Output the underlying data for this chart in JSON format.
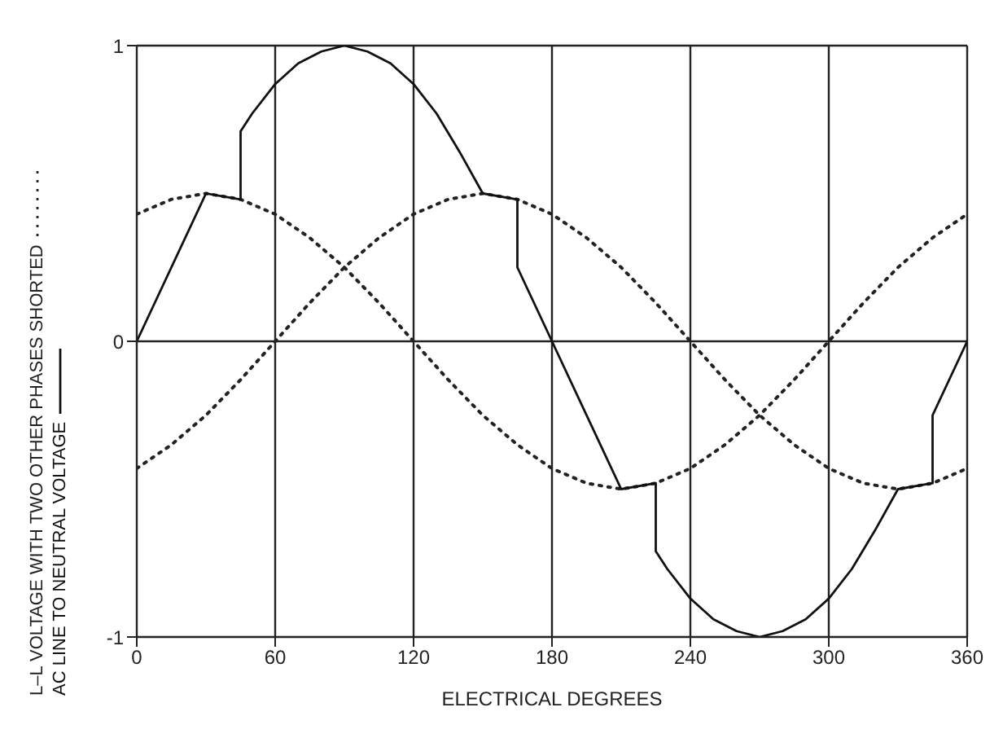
{
  "chart_data": {
    "type": "line",
    "xlabel": "ELECTRICAL DEGREES",
    "xlim": [
      0,
      360
    ],
    "xticks": [
      0,
      60,
      120,
      180,
      240,
      300,
      360
    ],
    "ylim": [
      -1,
      1
    ],
    "yticks": [
      -1,
      0,
      1
    ],
    "grid": true,
    "legend": "left",
    "marker": "none",
    "series": [
      {
        "name": "L–L VOLTAGE WITH TWO OTHER PHASES SHORTED",
        "color": "#222222",
        "line_style": "dotted",
        "x": [
          0,
          15,
          30,
          45,
          60,
          75,
          90,
          105,
          120,
          135,
          150,
          165,
          180,
          195,
          210,
          225,
          240,
          255,
          270,
          285,
          300,
          315,
          330,
          345,
          360
        ],
        "values": [
          0.43,
          0.48,
          0.5,
          0.48,
          0.43,
          0.35,
          0.25,
          0.13,
          0,
          -0.13,
          -0.25,
          -0.35,
          -0.43,
          -0.48,
          -0.5,
          -0.48,
          -0.43,
          -0.35,
          -0.25,
          -0.13,
          0,
          0.13,
          0.25,
          0.35,
          0.43
        ]
      },
      {
        "color": "#222222",
        "line_style": "dotted",
        "x": [
          0,
          15,
          30,
          45,
          60,
          75,
          90,
          105,
          120,
          135,
          150,
          165,
          180,
          195,
          210,
          225,
          240,
          255,
          270,
          285,
          300,
          315,
          330,
          345,
          360
        ],
        "values": [
          -0.43,
          -0.35,
          -0.25,
          -0.13,
          0,
          0.13,
          0.25,
          0.35,
          0.43,
          0.48,
          0.5,
          0.48,
          0.43,
          0.35,
          0.25,
          0.13,
          0,
          -0.13,
          -0.25,
          -0.35,
          -0.43,
          -0.48,
          -0.5,
          -0.48,
          -0.43
        ]
      },
      {
        "name": "AC LINE TO NEUTRAL VOLTAGE",
        "color": "#111111",
        "line_style": "solid",
        "x": [
          0,
          30,
          45,
          45,
          50,
          60,
          70,
          80,
          90,
          100,
          110,
          120,
          130,
          140,
          150,
          165,
          165,
          180,
          210,
          225,
          225,
          230,
          240,
          250,
          260,
          270,
          280,
          290,
          300,
          310,
          320,
          330,
          345,
          345,
          360
        ],
        "values": [
          0,
          0.5,
          0.48,
          0.71,
          0.77,
          0.87,
          0.94,
          0.98,
          1,
          0.98,
          0.94,
          0.87,
          0.77,
          0.64,
          0.5,
          0.48,
          0.25,
          0,
          -0.5,
          -0.48,
          -0.71,
          -0.77,
          -0.87,
          -0.94,
          -0.98,
          -1,
          -0.98,
          -0.94,
          -0.87,
          -0.77,
          -0.64,
          -0.5,
          -0.48,
          -0.25,
          0
        ]
      }
    ]
  }
}
